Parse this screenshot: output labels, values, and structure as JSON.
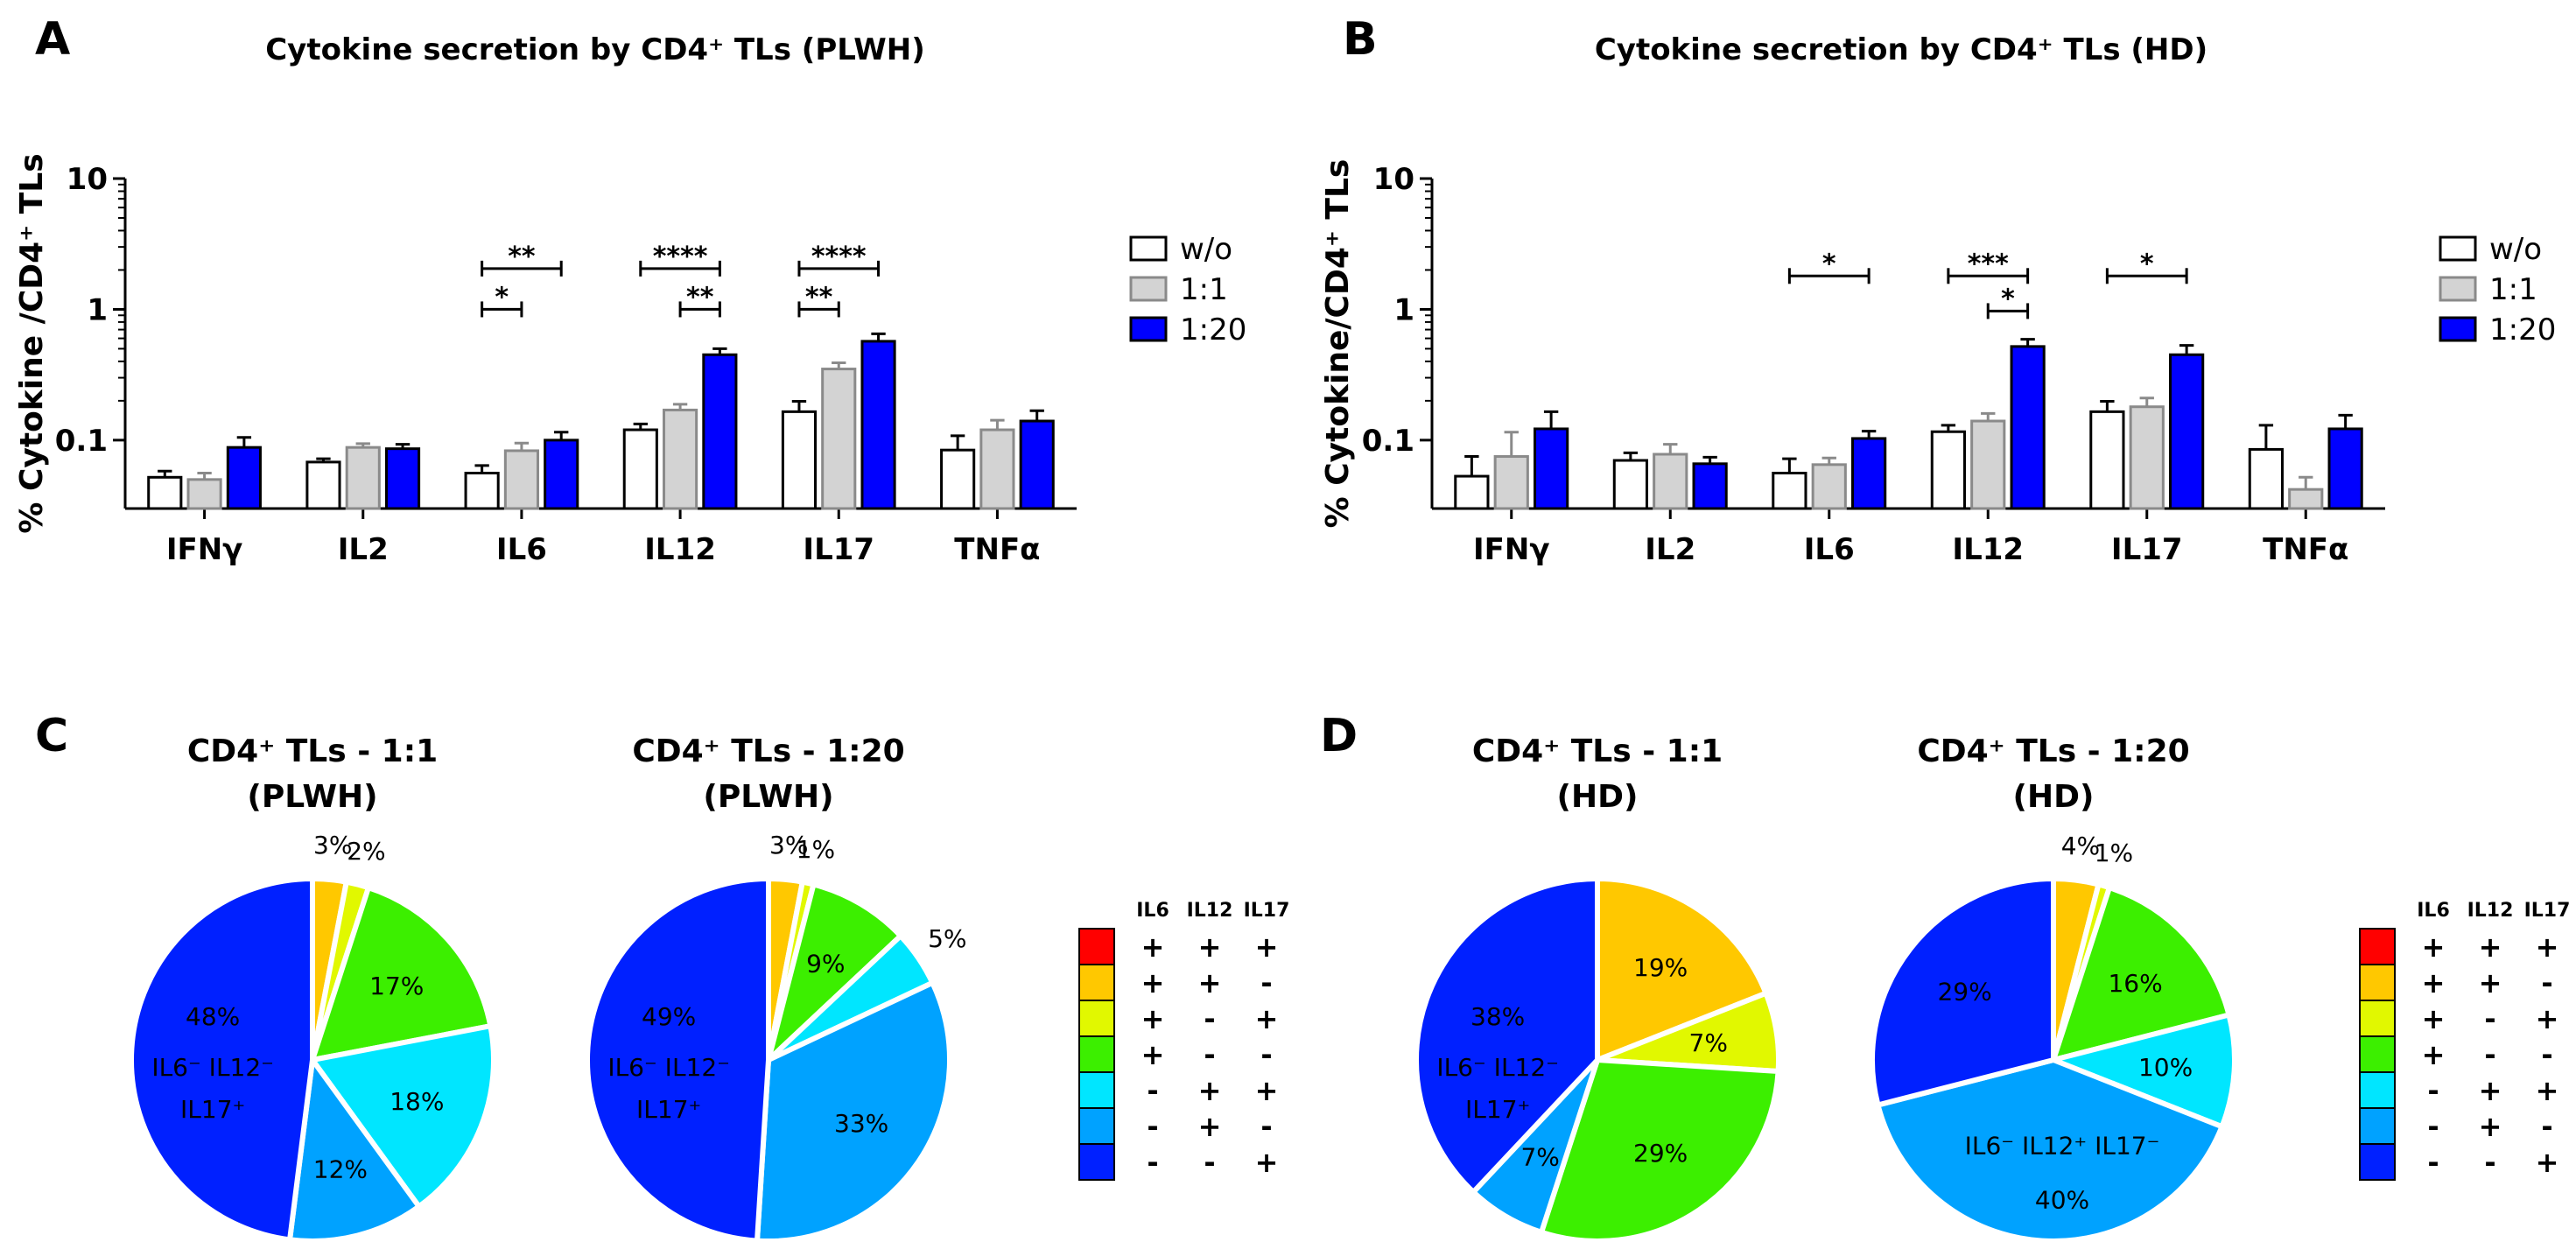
{
  "colors": {
    "w/o": "#ffffff",
    "1:1": "#d3d3d3",
    "1:20": "#0000ff",
    "pie": [
      "#ff0000",
      "#ffc800",
      "#e1f800",
      "#3cef00",
      "#00e6ff",
      "#00a2ff",
      "#0020ff"
    ]
  },
  "panel_letters": [
    "A",
    "B",
    "C",
    "D"
  ],
  "chart_data": [
    {
      "id": "A",
      "type": "bar",
      "title": "Cytokine secretion by CD4⁺ TLs (PLWH)",
      "ylabel": "% Cytokine /CD4⁺ TLs",
      "yscale": "log",
      "ylim": [
        0.03,
        10
      ],
      "yticks": [
        "0.1",
        "1",
        "10"
      ],
      "categories": [
        "IFNγ",
        "IL2",
        "IL6",
        "IL12",
        "IL17",
        "TNFα"
      ],
      "legend_position": "right",
      "series": [
        {
          "name": "w/o",
          "values": [
            0.052,
            0.068,
            0.056,
            0.12,
            0.165,
            0.084
          ],
          "errors": [
            0.058,
            0.072,
            0.064,
            0.133,
            0.198,
            0.108
          ]
        },
        {
          "name": "1:1",
          "values": [
            0.05,
            0.088,
            0.083,
            0.17,
            0.35,
            0.12
          ],
          "errors": [
            0.056,
            0.094,
            0.095,
            0.188,
            0.39,
            0.142
          ]
        },
        {
          "name": "1:20",
          "values": [
            0.088,
            0.086,
            0.1,
            0.45,
            0.57,
            0.14
          ],
          "errors": [
            0.105,
            0.093,
            0.115,
            0.5,
            0.65,
            0.168
          ]
        }
      ],
      "significance": [
        {
          "category": "IL6",
          "from": 0,
          "to": 2,
          "label": "**",
          "y": 2.05
        },
        {
          "category": "IL6",
          "from": 0,
          "to": 1,
          "label": "*",
          "y": 1.0
        },
        {
          "category": "IL12",
          "from": 0,
          "to": 2,
          "label": "****",
          "y": 2.05
        },
        {
          "category": "IL12",
          "from": 1,
          "to": 2,
          "label": "**",
          "y": 1.0
        },
        {
          "category": "IL17",
          "from": 0,
          "to": 2,
          "label": "****",
          "y": 2.05
        },
        {
          "category": "IL17",
          "from": 0,
          "to": 1,
          "label": "**",
          "y": 1.0
        }
      ]
    },
    {
      "id": "B",
      "type": "bar",
      "title": "Cytokine secretion by CD4⁺ TLs (HD)",
      "ylabel": "% Cytokine/CD4⁺ TLs",
      "yscale": "log",
      "ylim": [
        0.03,
        10
      ],
      "yticks": [
        "0.1",
        "1",
        "10"
      ],
      "categories": [
        "IFNγ",
        "IL2",
        "IL6",
        "IL12",
        "IL17",
        "TNFα"
      ],
      "legend_position": "right",
      "series": [
        {
          "name": "w/o",
          "values": [
            0.053,
            0.07,
            0.056,
            0.116,
            0.165,
            0.085
          ],
          "errors": [
            0.075,
            0.08,
            0.072,
            0.13,
            0.198,
            0.13
          ]
        },
        {
          "name": "1:1",
          "values": [
            0.075,
            0.078,
            0.065,
            0.14,
            0.18,
            0.042
          ],
          "errors": [
            0.115,
            0.093,
            0.073,
            0.16,
            0.21,
            0.052
          ]
        },
        {
          "name": "1:20",
          "values": [
            0.122,
            0.066,
            0.103,
            0.52,
            0.45,
            0.122
          ],
          "errors": [
            0.165,
            0.074,
            0.117,
            0.59,
            0.53,
            0.155
          ]
        }
      ],
      "significance": [
        {
          "category": "IL6",
          "from": 0,
          "to": 2,
          "label": "*",
          "y": 1.8
        },
        {
          "category": "IL12",
          "from": 0,
          "to": 2,
          "label": "***",
          "y": 1.8
        },
        {
          "category": "IL12",
          "from": 1,
          "to": 2,
          "label": "*",
          "y": 0.97
        },
        {
          "category": "IL17",
          "from": 0,
          "to": 2,
          "label": "*",
          "y": 1.8
        }
      ]
    },
    {
      "id": "C1",
      "type": "pie",
      "title_lines": [
        "CD4⁺ TLs - 1:1",
        "(PLWH)"
      ],
      "slices": [
        {
          "label": "3%",
          "value": 3,
          "color_index": 1
        },
        {
          "label": "2%",
          "value": 2,
          "color_index": 2
        },
        {
          "label": "17%",
          "value": 17,
          "color_index": 3
        },
        {
          "label": "18%",
          "value": 18,
          "color_index": 4
        },
        {
          "label": "12%",
          "value": 12,
          "color_index": 5
        },
        {
          "label": "48%",
          "value": 48,
          "color_index": 6,
          "annotation": [
            "IL6⁻ IL12⁻",
            "IL17⁺"
          ]
        }
      ]
    },
    {
      "id": "C2",
      "type": "pie",
      "title_lines": [
        "CD4⁺ TLs - 1:20",
        "(PLWH)"
      ],
      "slices": [
        {
          "label": "3%",
          "value": 3,
          "color_index": 1
        },
        {
          "label": "1%",
          "value": 1,
          "color_index": 2
        },
        {
          "label": "9%",
          "value": 9,
          "color_index": 3
        },
        {
          "label": "5%",
          "value": 5,
          "color_index": 4
        },
        {
          "label": "33%",
          "value": 33,
          "color_index": 5
        },
        {
          "label": "49%",
          "value": 49,
          "color_index": 6,
          "annotation": [
            "IL6⁻ IL12⁻",
            "IL17⁺"
          ]
        }
      ]
    },
    {
      "id": "D1",
      "type": "pie",
      "title_lines": [
        "CD4⁺ TLs - 1:1",
        "(HD)"
      ],
      "slices": [
        {
          "label": "19%",
          "value": 19,
          "color_index": 1
        },
        {
          "label": "7%",
          "value": 7,
          "color_index": 2
        },
        {
          "label": "29%",
          "value": 29,
          "color_index": 3
        },
        {
          "label": "7%",
          "value": 7,
          "color_index": 5
        },
        {
          "label": "38%",
          "value": 38,
          "color_index": 6,
          "annotation": [
            "IL6⁻ IL12⁻",
            "IL17⁺"
          ]
        }
      ]
    },
    {
      "id": "D2",
      "type": "pie",
      "title_lines": [
        "CD4⁺ TLs - 1:20",
        "(HD)"
      ],
      "slices": [
        {
          "label": "4%",
          "value": 4,
          "color_index": 1
        },
        {
          "label": "1%",
          "value": 1,
          "color_index": 2
        },
        {
          "label": "16%",
          "value": 16,
          "color_index": 3
        },
        {
          "label": "10%",
          "value": 10,
          "color_index": 4
        },
        {
          "label": "40%",
          "value": 40,
          "color_index": 5,
          "annotation": [
            "IL6⁻ IL12⁺ IL17⁻"
          ]
        },
        {
          "label": "29%",
          "value": 29,
          "color_index": 6
        }
      ]
    }
  ],
  "combo_legend": {
    "headers": [
      "IL6",
      "IL12",
      "IL17"
    ],
    "rows": [
      [
        "+",
        "+",
        "+"
      ],
      [
        "+",
        "+",
        "-"
      ],
      [
        "+",
        "-",
        "+"
      ],
      [
        "+",
        "-",
        "-"
      ],
      [
        "-",
        "+",
        "+"
      ],
      [
        "-",
        "+",
        "-"
      ],
      [
        "-",
        "-",
        "+"
      ]
    ]
  }
}
